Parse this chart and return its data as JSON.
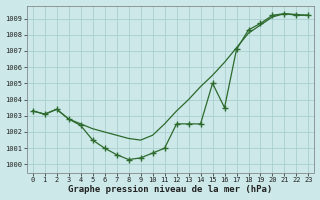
{
  "xlabel": "Graphe pression niveau de la mer (hPa)",
  "bg_color": "#cce8e8",
  "grid_color": "#aad0d0",
  "line_color": "#2d6a2d",
  "xlim": [
    -0.5,
    23.5
  ],
  "ylim": [
    999.5,
    1009.8
  ],
  "yticks": [
    1000,
    1001,
    1002,
    1003,
    1004,
    1005,
    1006,
    1007,
    1008,
    1009
  ],
  "xticks": [
    0,
    1,
    2,
    3,
    4,
    5,
    6,
    7,
    8,
    9,
    10,
    11,
    12,
    13,
    14,
    15,
    16,
    17,
    18,
    19,
    20,
    21,
    22,
    23
  ],
  "line_markers": [
    1003.3,
    1003.1,
    1003.4,
    1002.8,
    1002.4,
    1001.5,
    1001.0,
    1000.6,
    1000.3,
    1000.4,
    1000.7,
    1001.0,
    1002.5,
    1002.5,
    1002.5,
    1005.0,
    1003.5,
    1007.1,
    1008.3,
    1008.7,
    1009.2,
    1009.3,
    1009.2,
    1009.2
  ],
  "line_smooth": [
    1003.3,
    1003.1,
    1003.4,
    1002.8,
    1002.5,
    1002.2,
    1002.0,
    1001.8,
    1001.6,
    1001.5,
    1001.8,
    1002.5,
    1003.3,
    1004.0,
    1004.8,
    1005.5,
    1006.3,
    1007.2,
    1008.1,
    1008.6,
    1009.1,
    1009.3,
    1009.25,
    1009.2
  ]
}
